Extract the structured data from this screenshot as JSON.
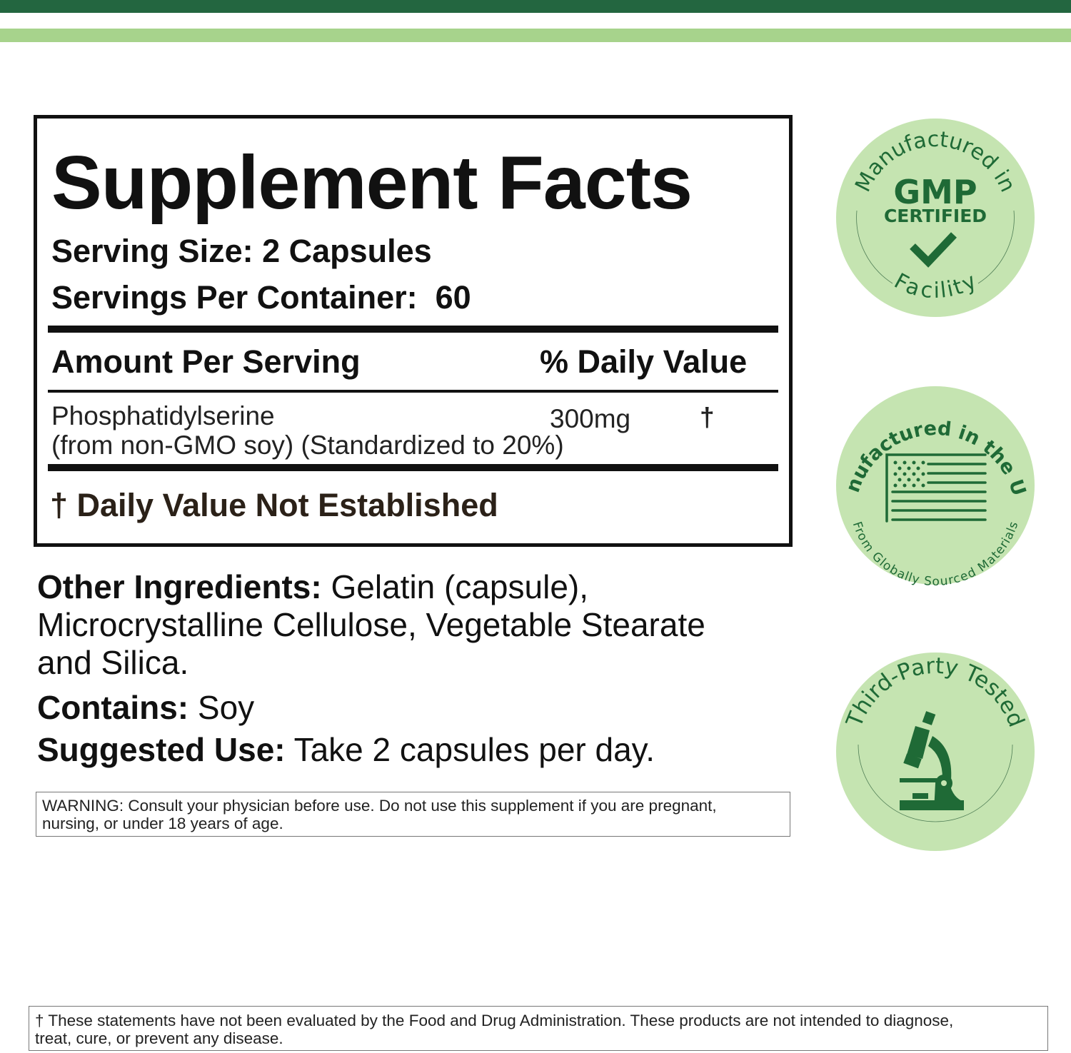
{
  "colors": {
    "dark_green": "#236640",
    "light_green": "#a7d38c",
    "badge_fill": "#c5e4b1",
    "badge_ink": "#1f6a36"
  },
  "facts": {
    "title": "Supplement Facts",
    "serving_size": "Serving Size: 2 Capsules",
    "servings_per_container": "Servings Per Container:  60",
    "header_amount": "Amount Per Serving",
    "header_dv": "% Daily Value",
    "rows": [
      {
        "name": "Phosphatidylserine",
        "detail": "(from non-GMO soy) (Standardized to 20%)",
        "amount": "300mg",
        "dv": "†"
      }
    ],
    "footnote": "† Daily Value Not Established"
  },
  "other_ingredients": {
    "label": "Other Ingredients:",
    "line1": " Gelatin (capsule),",
    "line2": "Microcrystalline Cellulose, Vegetable Stearate",
    "line3": "and Silica."
  },
  "contains": {
    "label": "Contains:",
    "value": " Soy"
  },
  "suggested_use": {
    "label": "Suggested Use:",
    "value": " Take 2 capsules per day."
  },
  "warning": {
    "line1": "WARNING: Consult your physician before use. Do not use this supplement if you are pregnant,",
    "line2": "nursing, or under 18 years of age."
  },
  "disclaimer": {
    "line1": "† These statements have not been evaluated by the Food and Drug Administration. These products are not intended to diagnose,",
    "line2": "treat, cure, or prevent any disease."
  },
  "badges": [
    {
      "icon": "checkmark-icon",
      "arc_top": "Manufactured in",
      "main": "GMP",
      "sub": "CERTIFIED",
      "arc_bottom": "Facility"
    },
    {
      "icon": "us-flag-icon",
      "arc_top": "Manufactured in the USA",
      "arc_bottom": "From Globally Sourced Materials"
    },
    {
      "icon": "microscope-icon",
      "arc_top": "Third-Party Tested"
    }
  ]
}
